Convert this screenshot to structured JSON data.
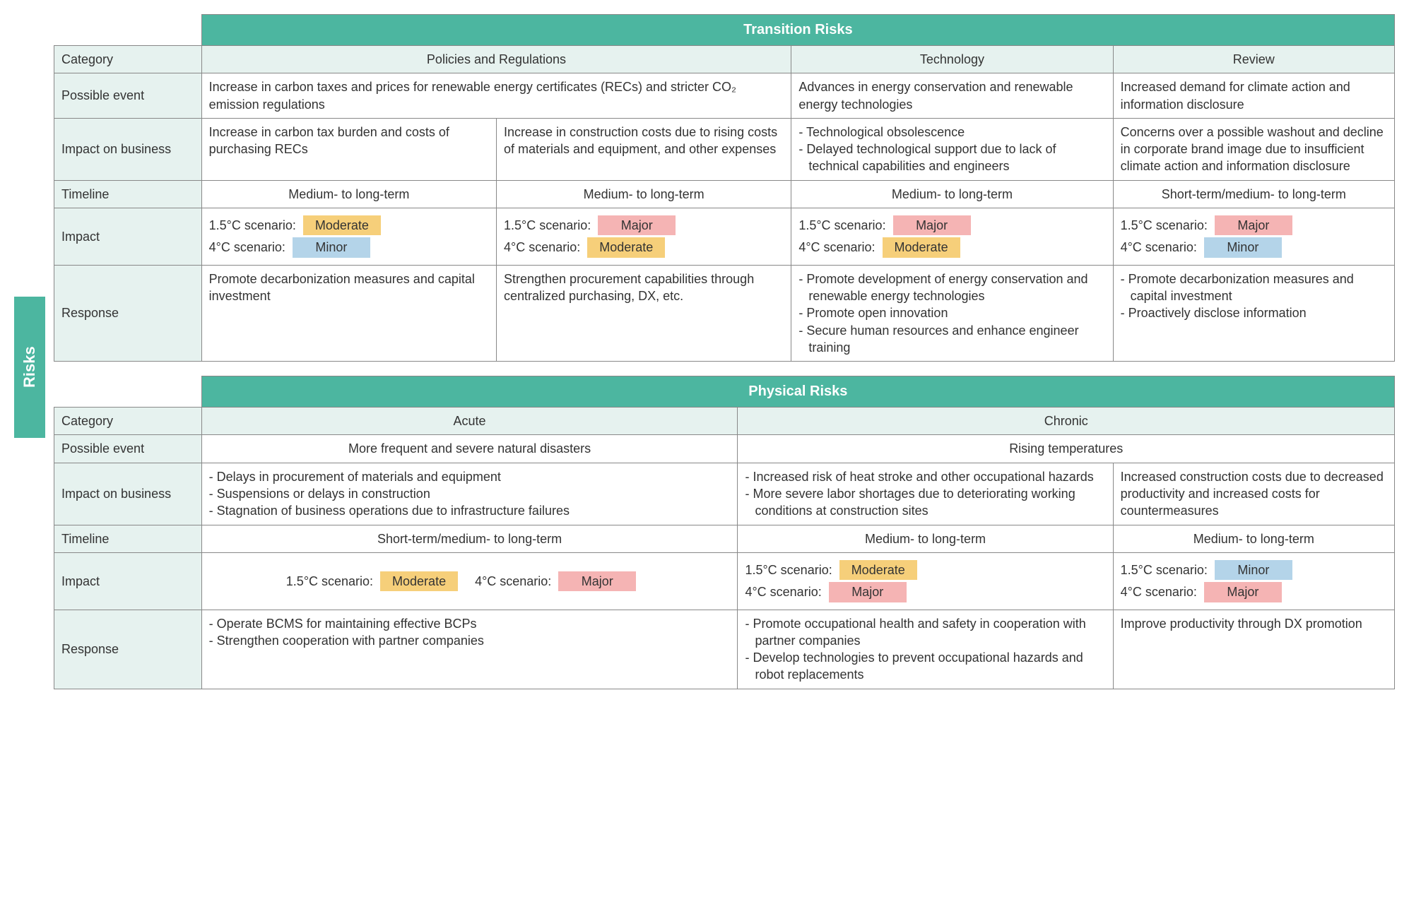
{
  "side_label": "Risks",
  "colors": {
    "teal": "#4cb6a0",
    "teal_light": "#e6f2ef",
    "moderate": "#f6cf7a",
    "major": "#f5b4b4",
    "minor": "#b4d4e9",
    "border": "#888888"
  },
  "row_labels": {
    "category": "Category",
    "possible_event": "Possible event",
    "impact_business": "Impact on business",
    "timeline": "Timeline",
    "impact": "Impact",
    "response": "Response"
  },
  "scenario_labels": {
    "s15": "1.5°C scenario:",
    "s4": "4°C scenario:"
  },
  "badges": {
    "moderate": "Moderate",
    "major": "Major",
    "minor": "Minor"
  },
  "transition": {
    "title": "Transition Risks",
    "categories": {
      "policies": "Policies and Regulations",
      "technology": "Technology",
      "review": "Review"
    },
    "possible_event": {
      "policies": "Increase in carbon taxes and prices for renewable energy certificates (RECs) and stricter CO₂ emission regulations",
      "technology": "Advances in energy conservation and renewable energy technologies",
      "review": "Increased demand for climate action and information disclosure"
    },
    "impact_business": {
      "policies_a": "Increase in carbon tax burden and costs of purchasing RECs",
      "policies_b": "Increase in construction costs due to rising costs of materials and equipment, and other expenses",
      "technology": [
        "Technological obsolescence",
        "Delayed technological support due to lack of technical capabilities and engineers"
      ],
      "review": "Concerns over a possible washout and decline in corporate brand image due to insufficient climate action and information disclosure"
    },
    "timeline": {
      "policies_a": "Medium- to long-term",
      "policies_b": "Medium- to long-term",
      "technology": "Medium- to long-term",
      "review": "Short-term/medium- to long-term"
    },
    "impact": {
      "policies_a": {
        "s15": "moderate",
        "s4": "minor"
      },
      "policies_b": {
        "s15": "major",
        "s4": "moderate"
      },
      "technology": {
        "s15": "major",
        "s4": "moderate"
      },
      "review": {
        "s15": "major",
        "s4": "minor"
      }
    },
    "response": {
      "policies_a": "Promote decarbonization measures and capital investment",
      "policies_b": "Strengthen procurement capabilities through centralized purchasing, DX, etc.",
      "technology": [
        "Promote development of energy conservation and renewable energy technologies",
        "Promote open innovation",
        "Secure human resources and enhance engineer training"
      ],
      "review": [
        "Promote decarbonization measures and capital investment",
        "Proactively disclose information"
      ]
    }
  },
  "physical": {
    "title": "Physical Risks",
    "categories": {
      "acute": "Acute",
      "chronic": "Chronic"
    },
    "possible_event": {
      "acute": "More frequent and severe natural disasters",
      "chronic": "Rising temperatures"
    },
    "impact_business": {
      "acute": [
        "Delays in procurement of materials and equipment",
        "Suspensions or delays in construction",
        "Stagnation of business operations due to infrastructure failures"
      ],
      "chronic_a": [
        "Increased risk of heat stroke and other occupational hazards",
        "More severe labor shortages due to deteriorating working conditions at construction sites"
      ],
      "chronic_b": "Increased construction costs due to decreased productivity and increased costs for countermeasures"
    },
    "timeline": {
      "acute": "Short-term/medium- to long-term",
      "chronic_a": "Medium- to long-term",
      "chronic_b": "Medium- to long-term"
    },
    "impact": {
      "acute": {
        "s15": "moderate",
        "s4": "major"
      },
      "chronic_a": {
        "s15": "moderate",
        "s4": "major"
      },
      "chronic_b": {
        "s15": "minor",
        "s4": "major"
      }
    },
    "response": {
      "acute": [
        "Operate BCMS for maintaining effective BCPs",
        "Strengthen cooperation with partner companies"
      ],
      "chronic_a": [
        "Promote occupational health and safety in cooperation with partner companies",
        "Develop technologies to prevent occupational hazards and robot replacements"
      ],
      "chronic_b": "Improve productivity through DX promotion"
    }
  }
}
